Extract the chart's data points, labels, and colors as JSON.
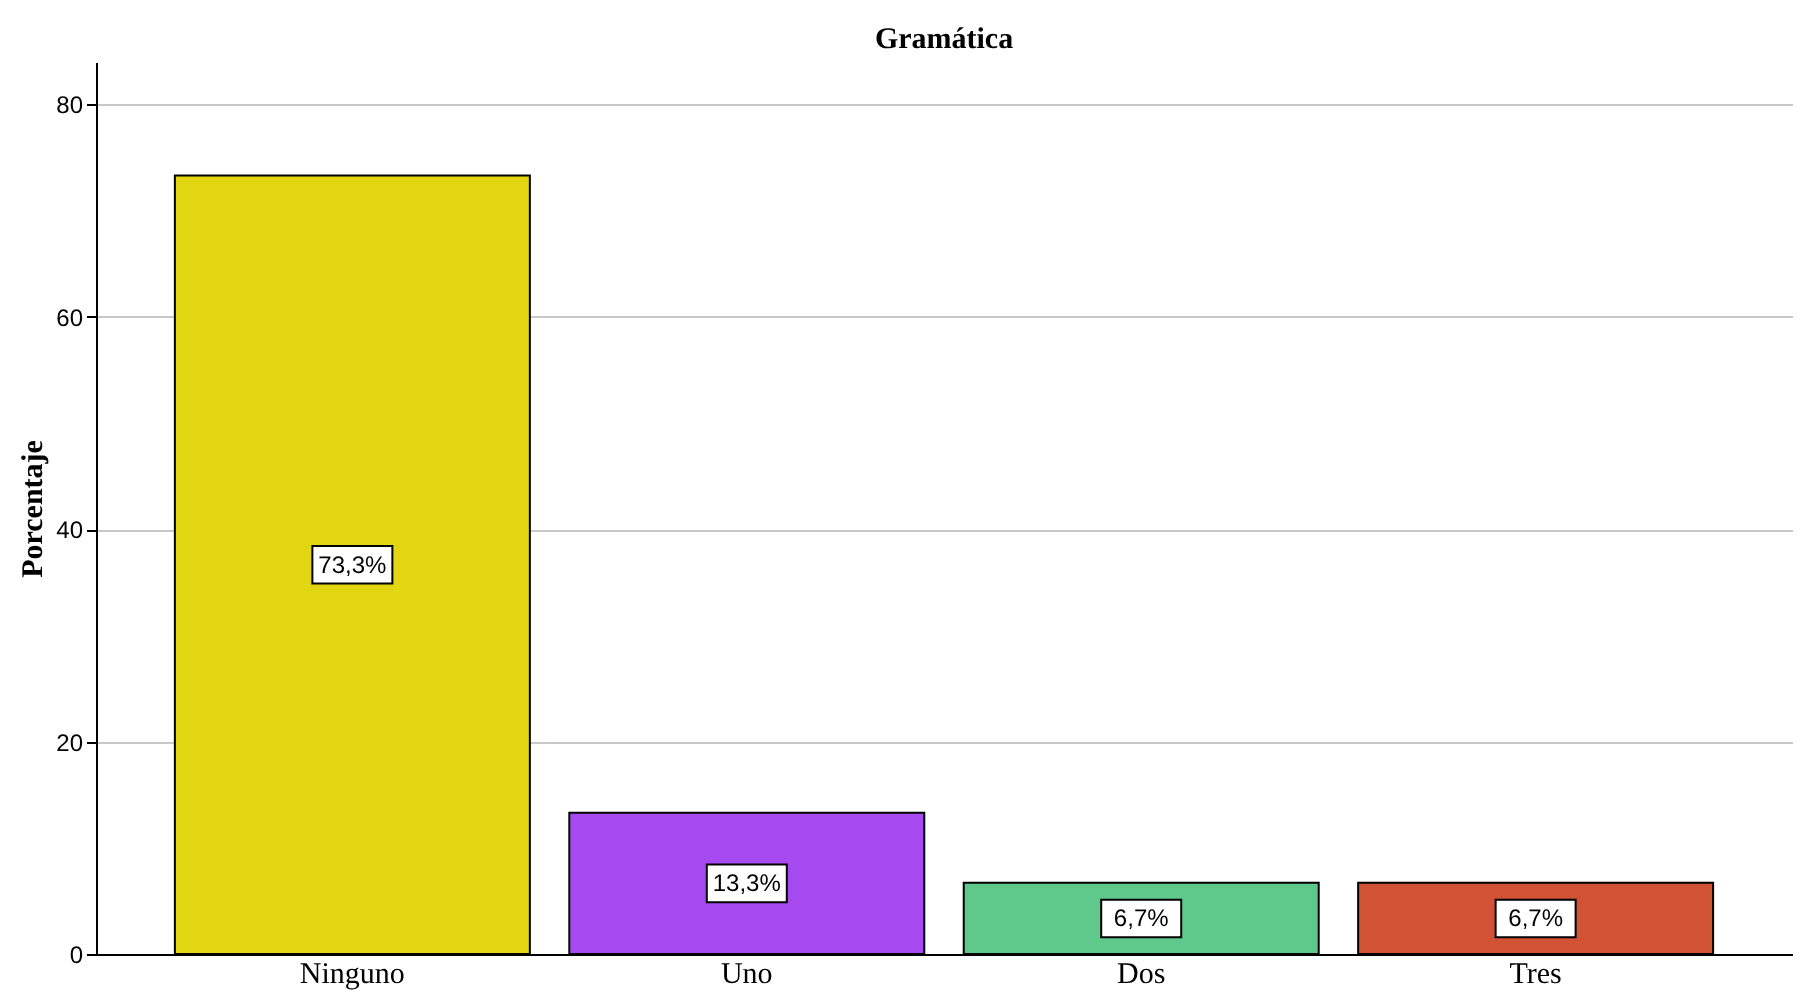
{
  "chart_data": {
    "type": "bar",
    "title": "Gramática",
    "ylabel": "Porcentaje",
    "categories": [
      "Ninguno",
      "Uno",
      "Dos",
      "Tres"
    ],
    "values": [
      73.3,
      13.3,
      6.7,
      6.7
    ],
    "colors": [
      "#e2d610",
      "#a64af0",
      "#5ec98a",
      "#d15234"
    ],
    "value_labels": [
      "73,3%",
      "13,3%",
      "6,7%",
      "6,7%"
    ],
    "ylim": [
      0,
      84
    ],
    "yticks": [
      0,
      20,
      40,
      60,
      80
    ],
    "grid": "y"
  }
}
